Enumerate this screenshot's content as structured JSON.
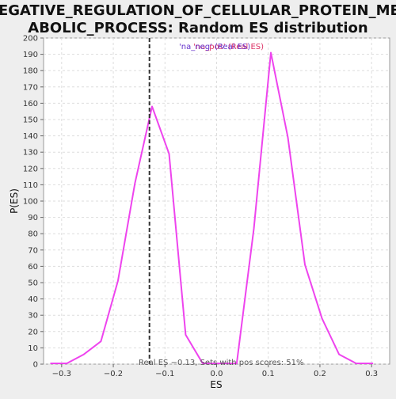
{
  "chart_data": {
    "type": "line",
    "title_lines": [
      "NEGATIVE_REGULATION_OF_CELLULAR_PROTEIN_MET",
      "ABOLIC_PROCESS: Random ES distribution"
    ],
    "xlabel": "ES",
    "ylabel": "P(ES)",
    "xlim": [
      -0.335,
      0.335
    ],
    "ylim": [
      0,
      200
    ],
    "x_ticks": [
      -0.3,
      -0.2,
      -0.1,
      0.0,
      0.1,
      0.2,
      0.3
    ],
    "x_tick_labels": [
      "−0.3",
      "−0.2",
      "−0.1",
      "0.0",
      "0.1",
      "0.2",
      "0.3"
    ],
    "y_ticks": [
      0,
      10,
      20,
      30,
      40,
      50,
      60,
      70,
      80,
      90,
      100,
      110,
      120,
      130,
      140,
      150,
      160,
      170,
      180,
      190,
      200
    ],
    "grid": true,
    "series": [
      {
        "color": "#ee44ee",
        "x": [
          -0.322,
          -0.29,
          -0.257,
          -0.224,
          -0.191,
          -0.158,
          -0.125,
          -0.092,
          -0.06,
          -0.027,
          0.006,
          0.039,
          0.072,
          0.105,
          0.138,
          0.171,
          0.204,
          0.237,
          0.27,
          0.303
        ],
        "y": [
          0.5,
          0.5,
          6,
          14,
          51,
          111,
          158,
          129,
          18,
          0.5,
          0.5,
          0.5,
          83,
          191,
          139,
          61,
          28,
          6,
          0.5,
          0.5
        ]
      }
    ],
    "reference_line": {
      "x": -0.13,
      "color": "#333333",
      "style": "dashed",
      "label": "'na_neg' (Real ES)"
    },
    "annotations": {
      "top_label_1": "'na_pos' (Real ES)",
      "top_label_2": "'na_neg' (Real ES)",
      "bottom_text": "Real ES −0.13, Sets with pos scores: 51%"
    },
    "colors": {
      "top_label_1": "#dd3366",
      "top_label_2": "#6633cc",
      "bottom_text": "#555555"
    }
  }
}
